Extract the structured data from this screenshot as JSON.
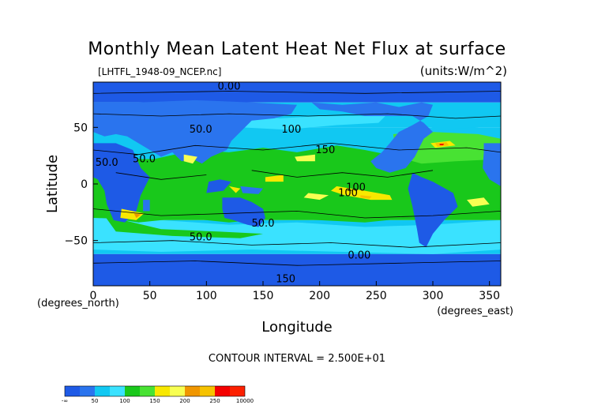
{
  "chart_data": {
    "type": "heatmap",
    "title": "Monthly Mean Latent Heat Net Flux at surface",
    "source_label": "[LHTFL_1948-09_NCEP.nc]",
    "units_label": "(units:W/m^2)",
    "xlabel": "Longitude",
    "ylabel": "Latitude",
    "x_unit_label": "(degrees_east)",
    "y_unit_label": "(degrees_north)",
    "xlim": [
      0,
      360
    ],
    "ylim": [
      -90,
      90
    ],
    "x_ticks": [
      0,
      50,
      100,
      150,
      200,
      250,
      300,
      350
    ],
    "x_tick_labels": [
      "0",
      "50",
      "100",
      "150",
      "200",
      "250",
      "300",
      "350"
    ],
    "y_ticks": [
      50,
      0,
      -50
    ],
    "y_tick_labels": [
      "50",
      "0",
      "−50"
    ],
    "contour_interval_text": "CONTOUR INTERVAL = 2.500E+01",
    "contour_labels": [
      "0.00",
      "50.0",
      "50.0",
      "50.0",
      "100",
      "150",
      "100",
      "50.0",
      "50.0",
      "0.00",
      "150",
      "100"
    ],
    "colorbar": {
      "tick_labels": [
        "-∞",
        "50",
        "100",
        "150",
        "200",
        "250",
        "10000"
      ],
      "levels": [
        {
          "range": [
            -1000000000.0,
            50
          ],
          "colors": [
            "#1e5ae6",
            "#2a74ee"
          ]
        },
        {
          "range": [
            50,
            100
          ],
          "colors": [
            "#11c8f2",
            "#3ae2ff"
          ]
        },
        {
          "range": [
            100,
            150
          ],
          "colors": [
            "#19c81b",
            "#48e233"
          ]
        },
        {
          "range": [
            150,
            200
          ],
          "colors": [
            "#f8e800",
            "#f8ff52"
          ]
        },
        {
          "range": [
            200,
            250
          ],
          "colors": [
            "#f09600",
            "#f6c200"
          ]
        },
        {
          "range": [
            250,
            10000
          ],
          "colors": [
            "#f40000",
            "#fc2000"
          ]
        }
      ]
    },
    "field_bands": [
      {
        "lat": [
          90,
          72
        ],
        "level": 0
      },
      {
        "lat": [
          72,
          50
        ],
        "level": 1
      },
      {
        "lat": [
          50,
          22
        ],
        "level": 1
      },
      {
        "lat": [
          22,
          -12
        ],
        "level": 2
      },
      {
        "lat": [
          -12,
          -32
        ],
        "level": 2
      },
      {
        "lat": [
          -32,
          -50
        ],
        "level": 1
      },
      {
        "lat": [
          -50,
          -62
        ],
        "level": 1
      },
      {
        "lat": [
          -62,
          -90
        ],
        "level": 0
      }
    ]
  }
}
